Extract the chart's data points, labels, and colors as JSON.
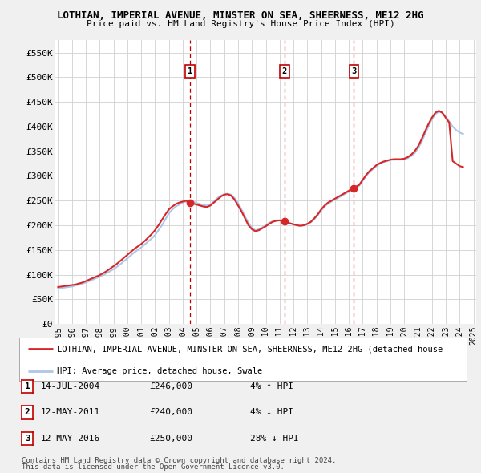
{
  "title": "LOTHIAN, IMPERIAL AVENUE, MINSTER ON SEA, SHEERNESS, ME12 2HG",
  "subtitle": "Price paid vs. HM Land Registry's House Price Index (HPI)",
  "legend_line1": "LOTHIAN, IMPERIAL AVENUE, MINSTER ON SEA, SHEERNESS, ME12 2HG (detached house",
  "legend_line2": "HPI: Average price, detached house, Swale",
  "footer1": "Contains HM Land Registry data © Crown copyright and database right 2024.",
  "footer2": "This data is licensed under the Open Government Licence v3.0.",
  "transactions": [
    {
      "num": 1,
      "date": "14-JUL-2004",
      "price": "£246,000",
      "change": "4% ↑ HPI",
      "x": 2004.53
    },
    {
      "num": 2,
      "date": "12-MAY-2011",
      "price": "£240,000",
      "change": "4% ↓ HPI",
      "x": 2011.36
    },
    {
      "num": 3,
      "date": "12-MAY-2016",
      "price": "£250,000",
      "change": "28% ↓ HPI",
      "x": 2016.36
    }
  ],
  "hpi_x": [
    1995.0,
    1995.25,
    1995.5,
    1995.75,
    1996.0,
    1996.25,
    1996.5,
    1996.75,
    1997.0,
    1997.25,
    1997.5,
    1997.75,
    1998.0,
    1998.25,
    1998.5,
    1998.75,
    1999.0,
    1999.25,
    1999.5,
    1999.75,
    2000.0,
    2000.25,
    2000.5,
    2000.75,
    2001.0,
    2001.25,
    2001.5,
    2001.75,
    2002.0,
    2002.25,
    2002.5,
    2002.75,
    2003.0,
    2003.25,
    2003.5,
    2003.75,
    2004.0,
    2004.25,
    2004.5,
    2004.75,
    2005.0,
    2005.25,
    2005.5,
    2005.75,
    2006.0,
    2006.25,
    2006.5,
    2006.75,
    2007.0,
    2007.25,
    2007.5,
    2007.75,
    2008.0,
    2008.25,
    2008.5,
    2008.75,
    2009.0,
    2009.25,
    2009.5,
    2009.75,
    2010.0,
    2010.25,
    2010.5,
    2010.75,
    2011.0,
    2011.25,
    2011.5,
    2011.75,
    2012.0,
    2012.25,
    2012.5,
    2012.75,
    2013.0,
    2013.25,
    2013.5,
    2013.75,
    2014.0,
    2014.25,
    2014.5,
    2014.75,
    2015.0,
    2015.25,
    2015.5,
    2015.75,
    2016.0,
    2016.25,
    2016.5,
    2016.75,
    2017.0,
    2017.25,
    2017.5,
    2017.75,
    2018.0,
    2018.25,
    2018.5,
    2018.75,
    2019.0,
    2019.25,
    2019.5,
    2019.75,
    2020.0,
    2020.25,
    2020.5,
    2020.75,
    2021.0,
    2021.25,
    2021.5,
    2021.75,
    2022.0,
    2022.25,
    2022.5,
    2022.75,
    2023.0,
    2023.25,
    2023.5,
    2023.75,
    2024.0,
    2024.25
  ],
  "hpi_y": [
    72000,
    73000,
    74000,
    75000,
    76000,
    78000,
    80000,
    82000,
    84000,
    87000,
    90000,
    93000,
    96000,
    99000,
    103000,
    107000,
    111000,
    116000,
    121000,
    127000,
    133000,
    139000,
    145000,
    150000,
    155000,
    161000,
    167000,
    173000,
    180000,
    190000,
    200000,
    212000,
    224000,
    232000,
    238000,
    242000,
    246000,
    248000,
    250000,
    248000,
    245000,
    243000,
    241000,
    240000,
    242000,
    248000,
    255000,
    260000,
    263000,
    264000,
    262000,
    255000,
    245000,
    232000,
    218000,
    205000,
    195000,
    190000,
    192000,
    196000,
    200000,
    205000,
    208000,
    210000,
    210000,
    208000,
    206000,
    204000,
    202000,
    200000,
    199000,
    200000,
    202000,
    206000,
    212000,
    220000,
    230000,
    238000,
    244000,
    248000,
    252000,
    256000,
    260000,
    264000,
    268000,
    272000,
    276000,
    280000,
    290000,
    300000,
    308000,
    314000,
    320000,
    325000,
    328000,
    330000,
    332000,
    333000,
    333000,
    333000,
    334000,
    336000,
    340000,
    346000,
    356000,
    368000,
    385000,
    400000,
    415000,
    425000,
    430000,
    428000,
    420000,
    410000,
    400000,
    393000,
    388000,
    385000
  ],
  "price_x": [
    1995.0,
    1995.25,
    1995.5,
    1995.75,
    1996.0,
    1996.25,
    1996.5,
    1996.75,
    1997.0,
    1997.25,
    1997.5,
    1997.75,
    1998.0,
    1998.25,
    1998.5,
    1998.75,
    1999.0,
    1999.25,
    1999.5,
    1999.75,
    2000.0,
    2000.25,
    2000.5,
    2000.75,
    2001.0,
    2001.25,
    2001.5,
    2001.75,
    2002.0,
    2002.25,
    2002.5,
    2002.75,
    2003.0,
    2003.25,
    2003.5,
    2003.75,
    2004.0,
    2004.25,
    2004.5,
    2004.75,
    2005.0,
    2005.25,
    2005.5,
    2005.75,
    2006.0,
    2006.25,
    2006.5,
    2006.75,
    2007.0,
    2007.25,
    2007.5,
    2007.75,
    2008.0,
    2008.25,
    2008.5,
    2008.75,
    2009.0,
    2009.25,
    2009.5,
    2009.75,
    2010.0,
    2010.25,
    2010.5,
    2010.75,
    2011.0,
    2011.25,
    2011.5,
    2011.75,
    2012.0,
    2012.25,
    2012.5,
    2012.75,
    2013.0,
    2013.25,
    2013.5,
    2013.75,
    2014.0,
    2014.25,
    2014.5,
    2014.75,
    2015.0,
    2015.25,
    2015.5,
    2015.75,
    2016.0,
    2016.25,
    2016.5,
    2016.75,
    2017.0,
    2017.25,
    2017.5,
    2017.75,
    2018.0,
    2018.25,
    2018.5,
    2018.75,
    2019.0,
    2019.25,
    2019.5,
    2019.75,
    2020.0,
    2020.25,
    2020.5,
    2020.75,
    2021.0,
    2021.25,
    2021.5,
    2021.75,
    2022.0,
    2022.25,
    2022.5,
    2022.75,
    2023.0,
    2023.25,
    2023.5,
    2023.75,
    2024.0,
    2024.25
  ],
  "price_y": [
    75000,
    76000,
    77000,
    78000,
    79000,
    80000,
    82000,
    84000,
    87000,
    90000,
    93000,
    96000,
    99000,
    103000,
    107000,
    112000,
    117000,
    122000,
    128000,
    134000,
    140000,
    146000,
    152000,
    157000,
    162000,
    168000,
    175000,
    182000,
    190000,
    200000,
    211000,
    222000,
    232000,
    238000,
    243000,
    246000,
    248000,
    250000,
    246000,
    244000,
    242000,
    240000,
    238000,
    237000,
    240000,
    246000,
    252000,
    258000,
    262000,
    263000,
    260000,
    252000,
    240000,
    228000,
    214000,
    200000,
    192000,
    188000,
    190000,
    194000,
    198000,
    203000,
    207000,
    209000,
    210000,
    208000,
    206000,
    204000,
    202000,
    200000,
    199000,
    200000,
    203000,
    207000,
    214000,
    222000,
    232000,
    240000,
    246000,
    250000,
    254000,
    258000,
    262000,
    266000,
    270000,
    274000,
    278000,
    282000,
    292000,
    302000,
    310000,
    316000,
    322000,
    326000,
    329000,
    331000,
    333000,
    334000,
    334000,
    334000,
    335000,
    338000,
    343000,
    350000,
    360000,
    374000,
    390000,
    405000,
    418000,
    428000,
    432000,
    428000,
    418000,
    408000,
    330000,
    325000,
    320000,
    318000
  ],
  "yticks": [
    0,
    50000,
    100000,
    150000,
    200000,
    250000,
    300000,
    350000,
    400000,
    450000,
    500000,
    550000
  ],
  "yticklabels": [
    "£0",
    "£50K",
    "£100K",
    "£150K",
    "£200K",
    "£250K",
    "£300K",
    "£350K",
    "£400K",
    "£450K",
    "£500K",
    "£550K"
  ],
  "ylim": [
    0,
    575000
  ],
  "xlim_min": 1994.8,
  "xlim_max": 2025.2,
  "bg_color": "#f0f0f0",
  "plot_bg_color": "#ffffff",
  "hpi_color": "#aec6e8",
  "price_color": "#d62728",
  "vline_color": "#c00000",
  "marker_color": "#d62728",
  "grid_color": "#d0d0d0"
}
